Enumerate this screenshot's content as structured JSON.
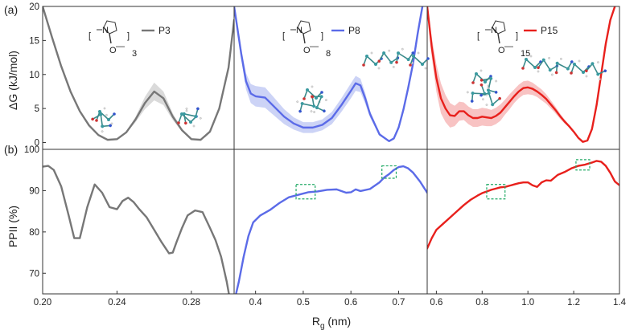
{
  "panel_labels": {
    "top": "(a)",
    "bottom": "(b)"
  },
  "y_label_top": "ΔG (kJ/mol)",
  "y_label_bottom": "PPII (%)",
  "x_label": {
    "main": "R",
    "sub": "g",
    "unit": " (nm)"
  },
  "structure": {
    "atom_N": "N",
    "atom_O": "O",
    "bracket_l": "[",
    "bracket_r": "]",
    "dash": "—"
  },
  "colors": {
    "P3": "#777777",
    "P8": "#5b6be8",
    "P15": "#e8201c",
    "band_P3": "#d3d3d3",
    "band_P8": "#c3cbf5",
    "band_P15": "#f7b9b9",
    "box": "#22aa66"
  },
  "chart_data": [
    {
      "type": "line",
      "id": "dg-P3",
      "legend": "P3",
      "repeat": "3",
      "xlim": [
        0.2,
        0.303
      ],
      "ylim": [
        -1,
        20
      ],
      "yticks": [
        0,
        5,
        10,
        15,
        20
      ],
      "x": [
        0.2,
        0.205,
        0.21,
        0.215,
        0.22,
        0.225,
        0.23,
        0.235,
        0.24,
        0.245,
        0.25,
        0.255,
        0.26,
        0.265,
        0.27,
        0.275,
        0.28,
        0.285,
        0.29,
        0.295,
        0.3,
        0.303
      ],
      "y": [
        20,
        15.5,
        11.2,
        7.5,
        4.6,
        2.5,
        1.1,
        0.4,
        0.5,
        1.5,
        3.4,
        5.8,
        7.5,
        6.5,
        3.8,
        1.8,
        0.5,
        0.4,
        1.6,
        5,
        11,
        18
      ],
      "band": [
        0,
        0,
        0,
        0,
        0,
        0,
        0,
        0,
        0,
        0.1,
        0.4,
        0.9,
        1.3,
        1.0,
        0.5,
        0.2,
        0,
        0,
        0,
        0,
        0,
        0
      ]
    },
    {
      "type": "line",
      "id": "dg-P8",
      "legend": "P8",
      "repeat": "8",
      "xlim": [
        0.355,
        0.76
      ],
      "ylim": [
        -1,
        20
      ],
      "x": [
        0.355,
        0.37,
        0.38,
        0.39,
        0.4,
        0.42,
        0.44,
        0.46,
        0.48,
        0.5,
        0.52,
        0.54,
        0.56,
        0.58,
        0.6,
        0.61,
        0.62,
        0.63,
        0.64,
        0.66,
        0.68,
        0.69,
        0.7,
        0.71,
        0.72,
        0.73,
        0.74,
        0.75
      ],
      "y": [
        20,
        13,
        9,
        7.2,
        6.8,
        6.6,
        5.2,
        3.8,
        2.8,
        2.2,
        2.2,
        2.6,
        3.6,
        5.5,
        7.6,
        8.7,
        8.4,
        6.5,
        4.2,
        1.2,
        0.2,
        0.6,
        2.2,
        4.8,
        8,
        11.5,
        16,
        20
      ],
      "band": [
        0,
        0.8,
        1.2,
        1.4,
        1.5,
        1.5,
        1.3,
        1.1,
        0.9,
        0.8,
        0.8,
        0.8,
        0.9,
        1,
        1.1,
        1.1,
        1,
        0.8,
        0.5,
        0.2,
        0,
        0,
        0,
        0,
        0,
        0,
        0,
        0
      ]
    },
    {
      "type": "line",
      "id": "dg-P15",
      "legend": "P15",
      "repeat": "15",
      "xlim": [
        0.56,
        1.4
      ],
      "ylim": [
        -1,
        20
      ],
      "x": [
        0.56,
        0.58,
        0.6,
        0.62,
        0.64,
        0.66,
        0.68,
        0.7,
        0.72,
        0.74,
        0.76,
        0.78,
        0.8,
        0.82,
        0.84,
        0.86,
        0.88,
        0.9,
        0.92,
        0.94,
        0.96,
        0.98,
        1.0,
        1.02,
        1.04,
        1.06,
        1.08,
        1.1,
        1.12,
        1.14,
        1.16,
        1.18,
        1.2,
        1.22,
        1.24,
        1.26,
        1.28,
        1.3,
        1.32,
        1.34,
        1.36,
        1.38
      ],
      "y": [
        20,
        14,
        9.5,
        6.5,
        5,
        4,
        3.9,
        4.6,
        4.6,
        4.0,
        3.6,
        3.6,
        3.8,
        3.7,
        3.6,
        3.9,
        4.4,
        5.2,
        6.0,
        6.8,
        7.5,
        8.0,
        8.1,
        7.9,
        7.5,
        7.0,
        6.4,
        5.6,
        4.8,
        3.9,
        3.1,
        2.4,
        1.6,
        0.7,
        0.1,
        0.3,
        2,
        5.5,
        10,
        14.5,
        18,
        20
      ],
      "band": [
        0.5,
        1.5,
        2,
        2.2,
        2.0,
        1.8,
        1.5,
        1.4,
        1.3,
        1.3,
        1.3,
        1.3,
        1.3,
        1.3,
        1.2,
        1.2,
        1.2,
        1.1,
        1.1,
        1.0,
        1.0,
        1.0,
        1.0,
        0.9,
        0.8,
        0.8,
        0.7,
        0.6,
        0.5,
        0.4,
        0.3,
        0.2,
        0.1,
        0,
        0,
        0,
        0,
        0,
        0,
        0,
        0,
        0
      ]
    },
    {
      "type": "line",
      "id": "ppii-P3",
      "xlim": [
        0.2,
        0.303
      ],
      "ylim": [
        65,
        100
      ],
      "yticks": [
        70,
        80,
        90,
        100
      ],
      "xticks": [
        0.2,
        0.24,
        0.28
      ],
      "xticklabels": [
        "0.20",
        "0.24",
        "0.28"
      ],
      "x": [
        0.2,
        0.203,
        0.206,
        0.21,
        0.214,
        0.217,
        0.22,
        0.224,
        0.228,
        0.232,
        0.236,
        0.24,
        0.243,
        0.246,
        0.249,
        0.252,
        0.256,
        0.26,
        0.264,
        0.268,
        0.27,
        0.272,
        0.275,
        0.278,
        0.282,
        0.286,
        0.29,
        0.293,
        0.296,
        0.299,
        0.301
      ],
      "y": [
        95.8,
        96.0,
        95,
        91,
        84,
        78.5,
        78.5,
        86,
        91.5,
        89.5,
        86,
        85.5,
        87.5,
        88.3,
        87.2,
        85.5,
        83.5,
        80.5,
        77.5,
        74.8,
        75,
        77.5,
        81,
        84,
        85.2,
        84.8,
        81,
        78,
        74,
        68,
        63
      ]
    },
    {
      "type": "line",
      "id": "ppii-P8",
      "xlim": [
        0.355,
        0.76
      ],
      "ylim": [
        65,
        100
      ],
      "xticks": [
        0.4,
        0.5,
        0.6,
        0.7
      ],
      "xticklabels": [
        "0.4",
        "0.5",
        "0.6",
        "0.7"
      ],
      "x": [
        0.355,
        0.365,
        0.375,
        0.385,
        0.395,
        0.41,
        0.43,
        0.45,
        0.47,
        0.49,
        0.51,
        0.53,
        0.55,
        0.57,
        0.59,
        0.6,
        0.61,
        0.62,
        0.64,
        0.66,
        0.67,
        0.68,
        0.69,
        0.7,
        0.71,
        0.72,
        0.73,
        0.745,
        0.76
      ],
      "y": [
        63,
        68,
        74,
        79,
        82.3,
        84,
        85.3,
        87,
        88.4,
        89,
        89.6,
        89.8,
        90.2,
        90.3,
        89.5,
        89.6,
        90.3,
        89.9,
        90.4,
        92,
        93.2,
        94,
        95,
        95.7,
        95.9,
        95.4,
        94.4,
        92.2,
        89.5
      ],
      "boxes": [
        {
          "x": [
            0.485,
            0.525
          ],
          "y": [
            88,
            91.5
          ]
        },
        {
          "x": [
            0.665,
            0.695
          ],
          "y": [
            93,
            96
          ]
        }
      ]
    },
    {
      "type": "line",
      "id": "ppii-P15",
      "xlim": [
        0.56,
        1.4
      ],
      "ylim": [
        65,
        100
      ],
      "xticks": [
        0.6,
        0.8,
        1.0,
        1.2,
        1.4
      ],
      "xticklabels": [
        "0.6",
        "0.8",
        "1.0",
        "1.2",
        "1.4"
      ],
      "x": [
        0.56,
        0.58,
        0.6,
        0.63,
        0.66,
        0.69,
        0.72,
        0.75,
        0.78,
        0.8,
        0.82,
        0.84,
        0.86,
        0.88,
        0.9,
        0.92,
        0.94,
        0.96,
        0.98,
        1.0,
        1.02,
        1.04,
        1.06,
        1.08,
        1.1,
        1.13,
        1.16,
        1.19,
        1.22,
        1.25,
        1.28,
        1.3,
        1.32,
        1.34,
        1.36,
        1.38,
        1.4
      ],
      "y": [
        76,
        78.5,
        80.5,
        82,
        83.5,
        85,
        86.5,
        87.8,
        88.8,
        89.4,
        89.8,
        90.2,
        90.5,
        90.8,
        90.9,
        91.2,
        91.5,
        91.8,
        92.0,
        92.0,
        91.3,
        90.9,
        92.0,
        92.5,
        92.4,
        93.8,
        94.5,
        95.4,
        96.0,
        96.3,
        96.8,
        97.2,
        97.0,
        96.0,
        94.3,
        92.2,
        91.3
      ],
      "boxes": [
        {
          "x": [
            0.82,
            0.9
          ],
          "y": [
            88,
            91.5
          ]
        },
        {
          "x": [
            1.21,
            1.27
          ],
          "y": [
            95,
            97.5
          ]
        }
      ]
    }
  ]
}
